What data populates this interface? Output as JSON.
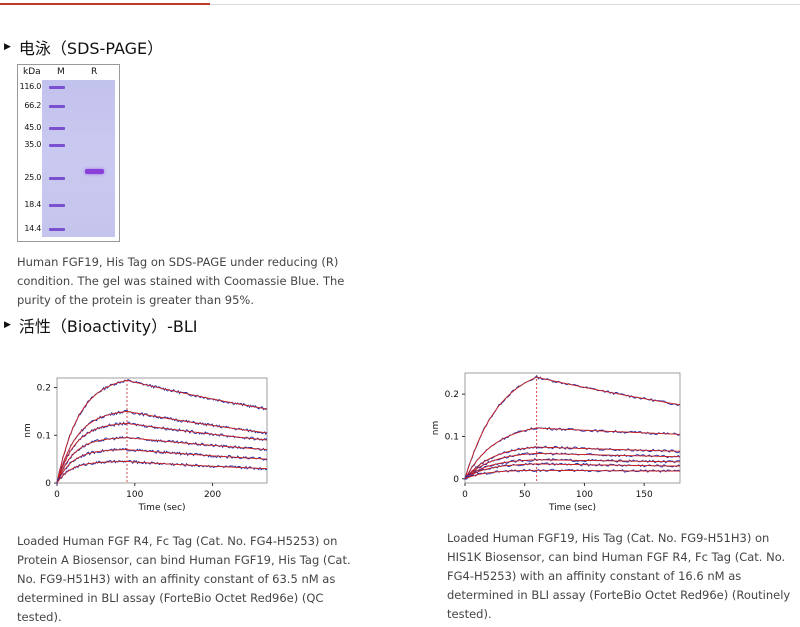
{
  "sds": {
    "title": "电泳（SDS-PAGE）",
    "gel": {
      "kda_label": "kDa",
      "lane_m": "M",
      "lane_r": "R",
      "markers": [
        "116.0",
        "66.2",
        "45.0",
        "35.0",
        "25.0",
        "18.4",
        "14.4"
      ]
    },
    "caption_lines": [
      "Human FGF19, His Tag on SDS-PAGE under reducing (R)",
      "condition. The gel was stained with Coomassie Blue. The",
      "purity of the protein is greater than 95%."
    ]
  },
  "bli": {
    "title": "活性（Bioactivity）-BLI",
    "left_caption_lines": [
      "Loaded Human FGF R4, Fc Tag (Cat. No. FG4-H5253) on",
      "Protein A Biosensor, can bind Human FGF19, His Tag (Cat.",
      "No. FG9-H51H3) with an affinity constant of 63.5 nM as",
      "determined in BLI assay (ForteBio Octet Red96e) (QC",
      "tested)."
    ],
    "right_caption_lines": [
      "Loaded Human FGF19, His Tag (Cat. No. FG9-H51H3) on",
      "HIS1K Biosensor, can bind Human FGF R4, Fc Tag (Cat. No.",
      "FG4-H5253) with an affinity constant of 16.6 nM as",
      "determined in BLI assay (ForteBio Octet Red96e) (Routinely",
      "tested)."
    ]
  },
  "chart_data": [
    {
      "type": "line",
      "xlabel": "Time (sec)",
      "ylabel": "nm",
      "xlim": [
        0,
        270
      ],
      "ylim": [
        0,
        0.22
      ],
      "x_ticks": [
        "0",
        "100",
        "200"
      ],
      "x_tick_values": [
        0,
        100,
        200
      ],
      "y_ticks": [
        "0",
        "0.1",
        "0.2"
      ],
      "y_tick_values": [
        0,
        0.1,
        0.2
      ],
      "dissociation_start": 90,
      "series_peaks": [
        0.215,
        0.15,
        0.125,
        0.095,
        0.07,
        0.045
      ],
      "series_ends": [
        0.155,
        0.105,
        0.09,
        0.07,
        0.05,
        0.03
      ],
      "colors": {
        "data": "#2233aa",
        "fit": "#cc2222",
        "marker": "#cc2222"
      }
    },
    {
      "type": "line",
      "xlabel": "Time (sec)",
      "ylabel": "nm",
      "xlim": [
        0,
        180
      ],
      "ylim": [
        -0.01,
        0.25
      ],
      "x_ticks": [
        "0",
        "50",
        "100",
        "150"
      ],
      "x_tick_values": [
        0,
        50,
        100,
        150
      ],
      "y_ticks": [
        "0",
        "0.1",
        "0.2"
      ],
      "y_tick_values": [
        0,
        0.1,
        0.2
      ],
      "dissociation_start": 60,
      "series_peaks": [
        0.24,
        0.12,
        0.075,
        0.06,
        0.045,
        0.035,
        0.02
      ],
      "series_ends": [
        0.175,
        0.105,
        0.065,
        0.052,
        0.04,
        0.03,
        0.018
      ],
      "colors": {
        "data": "#2233aa",
        "fit": "#cc2222",
        "marker": "#cc2222"
      }
    }
  ]
}
